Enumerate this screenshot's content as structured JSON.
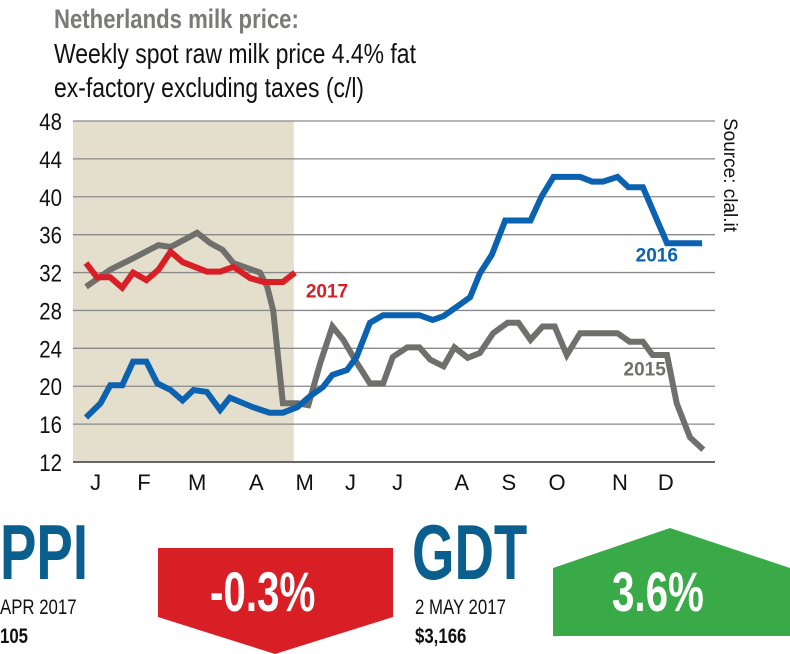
{
  "chart_data": {
    "type": "line",
    "title": "Netherlands milk price:",
    "subtitle": [
      "Weekly spot raw milk price 4.4% fat",
      "ex-factory excluding taxes (c/l)"
    ],
    "source": "Source: clal.it",
    "xlabel": "",
    "ylabel": "",
    "x_unit": "week of year",
    "xlim": [
      -1,
      52.5
    ],
    "ylim": [
      12,
      48
    ],
    "yticks": [
      12,
      16,
      20,
      24,
      28,
      32,
      36,
      40,
      44,
      48
    ],
    "grid": true,
    "shaded_period_weeks": [
      -1,
      17.2
    ],
    "month_ticks": [
      {
        "label": "J",
        "week": 0.8
      },
      {
        "label": "F",
        "week": 4.8
      },
      {
        "label": "M",
        "week": 9.2
      },
      {
        "label": "A",
        "week": 14.1
      },
      {
        "label": "M",
        "week": 18.1
      },
      {
        "label": "J",
        "week": 21.9
      },
      {
        "label": "J",
        "week": 25.8
      },
      {
        "label": "A",
        "week": 31.1
      },
      {
        "label": "S",
        "week": 35
      },
      {
        "label": "O",
        "week": 39
      },
      {
        "label": "N",
        "week": 44.2
      },
      {
        "label": "D",
        "week": 48
      }
    ],
    "series": [
      {
        "name": "2015",
        "color": "#6f6f6b",
        "label_at": [
          44.5,
          22
        ],
        "points": [
          [
            0,
            30.5
          ],
          [
            2,
            32.3
          ],
          [
            3.9,
            33.5
          ],
          [
            6,
            34.9
          ],
          [
            7,
            34.7
          ],
          [
            9.2,
            36.2
          ],
          [
            10.3,
            35.1
          ],
          [
            11.3,
            34.4
          ],
          [
            12.2,
            33
          ],
          [
            14.4,
            32
          ],
          [
            15,
            30.5
          ],
          [
            15.5,
            28
          ],
          [
            16.3,
            18.2
          ],
          [
            17.5,
            18.2
          ],
          [
            18.4,
            18
          ],
          [
            19.4,
            22.5
          ],
          [
            20.4,
            26.3
          ],
          [
            21.3,
            24.9
          ],
          [
            22.4,
            22.5
          ],
          [
            23.5,
            20.3
          ],
          [
            24.6,
            20.3
          ],
          [
            25.4,
            23.1
          ],
          [
            26.6,
            24.1
          ],
          [
            27.6,
            24.1
          ],
          [
            28.5,
            22.8
          ],
          [
            29.6,
            22.1
          ],
          [
            30.5,
            24.1
          ],
          [
            31.6,
            23
          ],
          [
            32.6,
            23.5
          ],
          [
            33.7,
            25.6
          ],
          [
            34.9,
            26.7
          ],
          [
            35.8,
            26.7
          ],
          [
            36.8,
            24.9
          ],
          [
            37.8,
            26.3
          ],
          [
            38.8,
            26.3
          ],
          [
            39.8,
            23.3
          ],
          [
            40.9,
            25.6
          ],
          [
            44,
            25.6
          ],
          [
            45,
            24.7
          ],
          [
            46.1,
            24.7
          ],
          [
            46.9,
            23.3
          ],
          [
            48.1,
            23.3
          ],
          [
            48.9,
            18.2
          ],
          [
            50,
            14.6
          ],
          [
            51.1,
            13.3
          ]
        ]
      },
      {
        "name": "2016",
        "color": "#0b62b0",
        "label_at": [
          45.5,
          34
        ],
        "points": [
          [
            0,
            16.7
          ],
          [
            1.2,
            18.2
          ],
          [
            2,
            20.1
          ],
          [
            3,
            20.1
          ],
          [
            3.9,
            22.6
          ],
          [
            5,
            22.6
          ],
          [
            5.9,
            20.3
          ],
          [
            7,
            19.6
          ],
          [
            8,
            18.5
          ],
          [
            8.9,
            19.6
          ],
          [
            10,
            19.4
          ],
          [
            11.1,
            17.5
          ],
          [
            11.9,
            18.8
          ],
          [
            13.8,
            17.8
          ],
          [
            15.2,
            17.2
          ],
          [
            16.3,
            17.2
          ],
          [
            17.5,
            17.8
          ],
          [
            18.5,
            18.9
          ],
          [
            19.6,
            19.9
          ],
          [
            20.4,
            21.2
          ],
          [
            21.6,
            21.7
          ],
          [
            22.4,
            23.1
          ],
          [
            23.5,
            26.7
          ],
          [
            24.6,
            27.5
          ],
          [
            27.6,
            27.5
          ],
          [
            28.7,
            27
          ],
          [
            29.6,
            27.4
          ],
          [
            30.7,
            28.4
          ],
          [
            31.8,
            29.4
          ],
          [
            32.6,
            31.9
          ],
          [
            33.6,
            33.9
          ],
          [
            34.7,
            37.5
          ],
          [
            36.8,
            37.5
          ],
          [
            37.7,
            40
          ],
          [
            38.7,
            42.1
          ],
          [
            40.9,
            42.1
          ],
          [
            41.9,
            41.6
          ],
          [
            42.8,
            41.6
          ],
          [
            44,
            42.1
          ],
          [
            44.9,
            41
          ],
          [
            46.1,
            41
          ],
          [
            48.1,
            35.1
          ],
          [
            51,
            35.1
          ]
        ]
      },
      {
        "name": "2017",
        "color": "#d81f26",
        "label_at": [
          18.2,
          30.2
        ],
        "points": [
          [
            0,
            33
          ],
          [
            0.9,
            31.5
          ],
          [
            2,
            31.5
          ],
          [
            3,
            30.4
          ],
          [
            3.9,
            32
          ],
          [
            5,
            31.2
          ],
          [
            6,
            32.3
          ],
          [
            7,
            34.2
          ],
          [
            8,
            33.1
          ],
          [
            10,
            32.1
          ],
          [
            11.1,
            32.1
          ],
          [
            12.2,
            32.6
          ],
          [
            13.6,
            31.4
          ],
          [
            14.7,
            31
          ],
          [
            16.3,
            31
          ],
          [
            17.3,
            32
          ]
        ]
      }
    ]
  },
  "ppi": {
    "label": "PPI",
    "period": "APR 2017",
    "value": "105",
    "change": "-0.3%",
    "color": "#d81f26"
  },
  "gdt": {
    "label": "GDT",
    "period": "2 MAY 2017",
    "value": "$3,166",
    "change": "3.6%",
    "color": "#3aaa48"
  }
}
